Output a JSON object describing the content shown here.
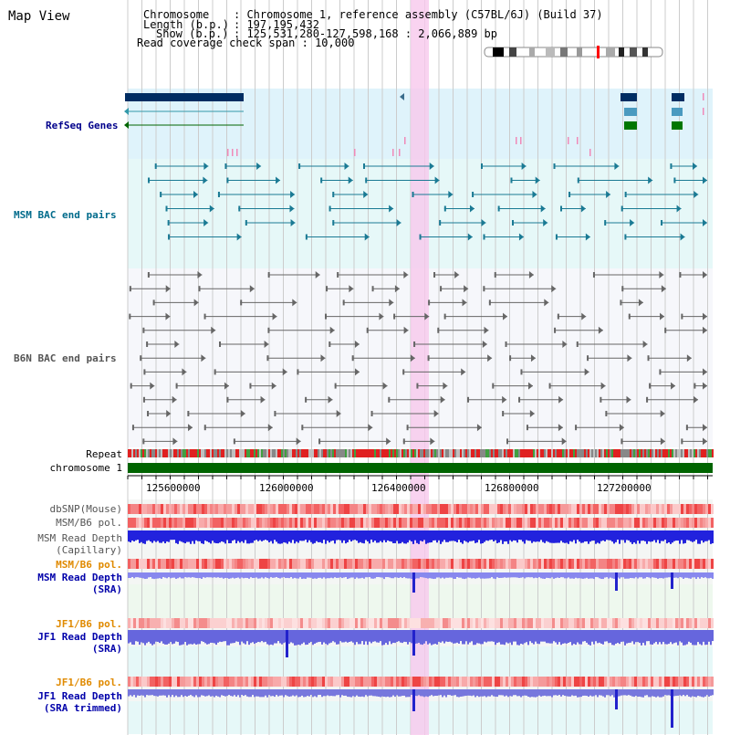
{
  "map_title": "Map View",
  "header": {
    "chromosome_key": "Chromosome",
    "chromosome_val": ": Chromosome 1, reference assembly (C57BL/6J) (Build 37)",
    "length_key": "Length (b.p.)",
    "length_val": ": 197,195,432",
    "show_key": "Show (b.p.)",
    "show_val": ": 125,531,280-127,598,168 : 2,066,889 bp",
    "coverage": "Read coverage check span : 10,000"
  },
  "tracks": {
    "refseq": "RefSeq Genes",
    "msm_bac": "MSM BAC end pairs",
    "b6n_bac": "B6N BAC end pairs",
    "repeat": "Repeat",
    "chromosome": "chromosome 1",
    "dbsnp": "dbSNP(Mouse)",
    "msm_b6_pol": "MSM/B6 pol.",
    "msm_depth_cap_1": "MSM Read Depth",
    "msm_depth_cap_2": "(Capillary)",
    "msm_b6_pol2": "MSM/B6 pol.",
    "msm_depth_sra_1": "MSM Read Depth",
    "msm_depth_sra_2": "(SRA)",
    "jf1_b6_pol": "JF1/B6 pol.",
    "jf1_depth_1": "JF1 Read Depth",
    "jf1_depth_2": "(SRA)",
    "jf1_b6_pol2": "JF1/B6 pol.",
    "jf1_trim_1": "JF1 Read Depth",
    "jf1_trim_2": "(SRA trimmed)"
  },
  "scale_ticks": [
    "125600000",
    "126000000",
    "126400000",
    "126800000",
    "127200000"
  ],
  "colors": {
    "refseq_label": "#00008b",
    "msm_label": "#006b8b",
    "b6n_label": "#555555",
    "orange_label": "#e08a00",
    "blue_label": "#0000aa",
    "highlight": "#f7c8ec",
    "chrom_bar": "#006400"
  }
}
